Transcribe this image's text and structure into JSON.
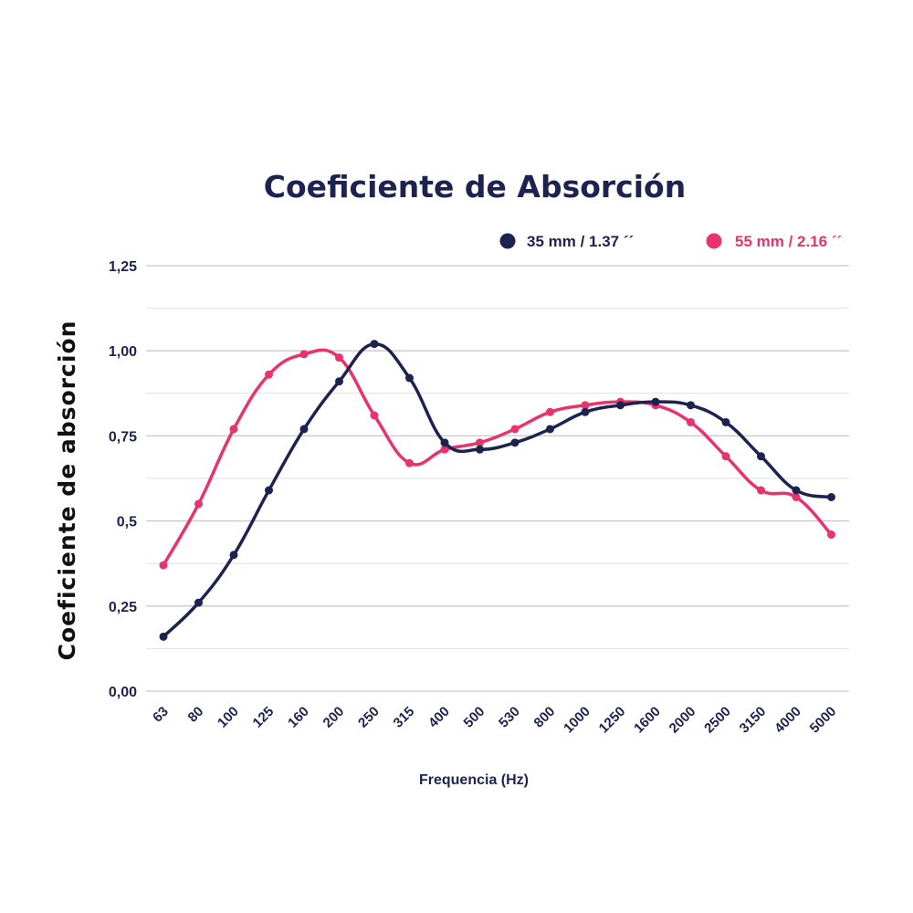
{
  "chart_data": {
    "type": "line",
    "title": "Coeficiente de Absorción",
    "xlabel": "Frequencia (Hz)",
    "ylabel": "Coeficiente de absorción",
    "categories": [
      "63",
      "80",
      "100",
      "125",
      "160",
      "200",
      "250",
      "315",
      "400",
      "500",
      "530",
      "800",
      "1000",
      "1250",
      "1600",
      "2000",
      "2500",
      "3150",
      "4000",
      "5000"
    ],
    "ylim": [
      0,
      1.25
    ],
    "yticks": [
      {
        "value": 0,
        "label": "0,00"
      },
      {
        "value": 0.25,
        "label": "0,25"
      },
      {
        "value": 0.5,
        "label": "0,5"
      },
      {
        "value": 0.75,
        "label": "0,75"
      },
      {
        "value": 1.0,
        "label": "1,00"
      },
      {
        "value": 1.25,
        "label": "1,25"
      }
    ],
    "grid": true,
    "legend_position": "top-right",
    "series": [
      {
        "name": "35 mm / 1.37 ´´",
        "color": "#1d2350",
        "values": [
          0.16,
          0.26,
          0.4,
          0.59,
          0.77,
          0.91,
          1.02,
          0.92,
          0.73,
          0.71,
          0.73,
          0.77,
          0.82,
          0.84,
          0.85,
          0.84,
          0.79,
          0.69,
          0.59,
          0.57
        ]
      },
      {
        "name": "55 mm / 2.16 ´´",
        "color": "#e8336d",
        "values": [
          0.37,
          0.55,
          0.77,
          0.93,
          0.99,
          0.98,
          0.81,
          0.67,
          0.71,
          0.73,
          0.77,
          0.82,
          0.84,
          0.85,
          0.84,
          0.79,
          0.69,
          0.59,
          0.57,
          0.46
        ]
      }
    ]
  }
}
